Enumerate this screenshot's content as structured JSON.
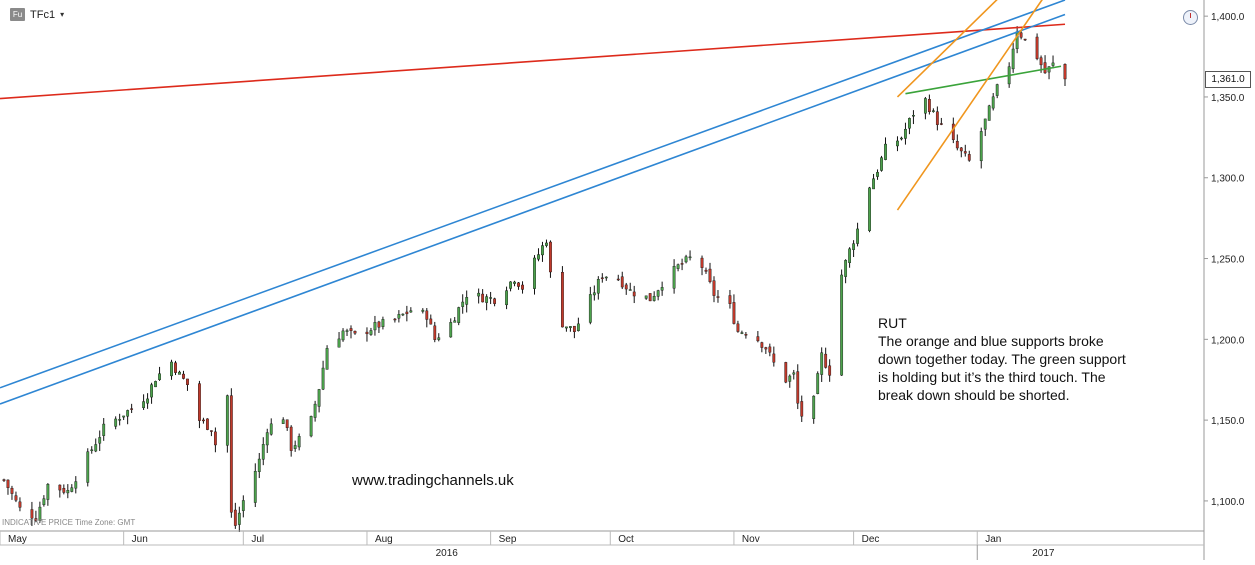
{
  "header": {
    "symbol_badge": "Fu",
    "symbol": "TFc1",
    "dropdown_glyph": "▾"
  },
  "footer_note": "INDICATIVE PRICE   Time Zone: GMT",
  "annotation": {
    "title": "RUT",
    "body": "The orange and blue supports broke down together today. The green support is holding but it’s the third touch. The break down should be shorted."
  },
  "watermark": "www.tradingchannels.uk",
  "price_tag": "1,361.0",
  "chart_data": {
    "type": "candlestick",
    "title": "",
    "xlabel": "",
    "ylabel": "",
    "ylim": [
      1085,
      1405
    ],
    "xlim": [
      "2016-05-01",
      "2017-01-23"
    ],
    "y_ticks": [
      {
        "value": 1100,
        "label": "1,100.0"
      },
      {
        "value": 1150,
        "label": "1,150.0"
      },
      {
        "value": 1200,
        "label": "1,200.0"
      },
      {
        "value": 1250,
        "label": "1,250.0"
      },
      {
        "value": 1300,
        "label": "1,300.0"
      },
      {
        "value": 1350,
        "label": "1,350.0"
      },
      {
        "value": 1400,
        "label": "1,400.0"
      }
    ],
    "month_labels": [
      {
        "label": "May",
        "date": "2016-05-01"
      },
      {
        "label": "Jun",
        "date": "2016-06-01"
      },
      {
        "label": "Jul",
        "date": "2016-07-01"
      },
      {
        "label": "Aug",
        "date": "2016-08-01"
      },
      {
        "label": "Sep",
        "date": "2016-09-01"
      },
      {
        "label": "Oct",
        "date": "2016-10-01"
      },
      {
        "label": "Nov",
        "date": "2016-11-01"
      },
      {
        "label": "Dec",
        "date": "2016-12-01"
      },
      {
        "label": "Jan",
        "date": "2017-01-01"
      }
    ],
    "year_labels": [
      {
        "label": "2016",
        "date": "2016-09-01"
      },
      {
        "label": "2017",
        "date": "2017-01-01"
      }
    ],
    "last_price": 1361.0,
    "price_path": [
      [
        "2016-05-02",
        1113
      ],
      [
        "2016-05-06",
        1095
      ],
      [
        "2016-05-10",
        1090
      ],
      [
        "2016-05-13",
        1110
      ],
      [
        "2016-05-18",
        1106
      ],
      [
        "2016-05-24",
        1132
      ],
      [
        "2016-05-27",
        1145
      ],
      [
        "2016-06-01",
        1154
      ],
      [
        "2016-06-03",
        1157
      ],
      [
        "2016-06-07",
        1166
      ],
      [
        "2016-06-09",
        1176
      ],
      [
        "2016-06-13",
        1186
      ],
      [
        "2016-06-15",
        1178
      ],
      [
        "2016-06-17",
        1172
      ],
      [
        "2016-06-20",
        1150
      ],
      [
        "2016-06-23",
        1145
      ],
      [
        "2016-06-24",
        1135
      ],
      [
        "2016-06-27",
        1165
      ],
      [
        "2016-06-28",
        1092
      ],
      [
        "2016-06-29",
        1085
      ],
      [
        "2016-07-01",
        1100
      ],
      [
        "2016-07-05",
        1125
      ],
      [
        "2016-07-07",
        1145
      ],
      [
        "2016-07-11",
        1152
      ],
      [
        "2016-07-13",
        1133
      ],
      [
        "2016-07-15",
        1138
      ],
      [
        "2016-07-18",
        1150
      ],
      [
        "2016-07-20",
        1170
      ],
      [
        "2016-07-22",
        1195
      ],
      [
        "2016-07-26",
        1205
      ],
      [
        "2016-07-29",
        1202
      ],
      [
        "2016-08-03",
        1208
      ],
      [
        "2016-08-08",
        1212
      ],
      [
        "2016-08-12",
        1218
      ],
      [
        "2016-08-16",
        1215
      ],
      [
        "2016-08-18",
        1200
      ],
      [
        "2016-08-22",
        1210
      ],
      [
        "2016-08-26",
        1228
      ],
      [
        "2016-08-30",
        1226
      ],
      [
        "2016-09-02",
        1225
      ],
      [
        "2016-09-07",
        1238
      ],
      [
        "2016-09-09",
        1232
      ],
      [
        "2016-09-12",
        1248
      ],
      [
        "2016-09-15",
        1262
      ],
      [
        "2016-09-16",
        1240
      ],
      [
        "2016-09-19",
        1210
      ],
      [
        "2016-09-22",
        1205
      ],
      [
        "2016-09-26",
        1225
      ],
      [
        "2016-09-29",
        1240
      ],
      [
        "2016-10-03",
        1238
      ],
      [
        "2016-10-06",
        1230
      ],
      [
        "2016-10-11",
        1225
      ],
      [
        "2016-10-14",
        1235
      ],
      [
        "2016-10-18",
        1245
      ],
      [
        "2016-10-21",
        1250
      ],
      [
        "2016-10-24",
        1245
      ],
      [
        "2016-10-27",
        1228
      ],
      [
        "2016-10-31",
        1220
      ],
      [
        "2016-11-02",
        1205
      ],
      [
        "2016-11-04",
        1205
      ],
      [
        "2016-11-07",
        1200
      ],
      [
        "2016-11-09",
        1195
      ],
      [
        "2016-11-11",
        1185
      ],
      [
        "2016-11-14",
        1175
      ],
      [
        "2016-11-16",
        1178
      ],
      [
        "2016-11-17",
        1160
      ],
      [
        "2016-11-18",
        1153
      ],
      [
        "2016-11-21",
        1162
      ],
      [
        "2016-11-23",
        1190
      ],
      [
        "2016-11-25",
        1180
      ],
      [
        "2016-11-28",
        1240
      ],
      [
        "2016-11-30",
        1255
      ],
      [
        "2016-12-02",
        1268
      ],
      [
        "2016-12-05",
        1295
      ],
      [
        "2016-12-07",
        1305
      ],
      [
        "2016-12-09",
        1318
      ],
      [
        "2016-12-13",
        1325
      ],
      [
        "2016-12-16",
        1340
      ],
      [
        "2016-12-19",
        1348
      ],
      [
        "2016-12-22",
        1335
      ],
      [
        "2016-12-27",
        1318
      ],
      [
        "2016-12-30",
        1310
      ],
      [
        "2017-01-03",
        1335
      ],
      [
        "2017-01-06",
        1355
      ],
      [
        "2017-01-09",
        1370
      ],
      [
        "2017-01-11",
        1392
      ],
      [
        "2017-01-13",
        1385
      ],
      [
        "2017-01-16",
        1375
      ],
      [
        "2017-01-18",
        1365
      ],
      [
        "2017-01-20",
        1370
      ],
      [
        "2017-01-23",
        1361
      ]
    ],
    "trend_lines": [
      {
        "color": "#dd2a1b",
        "from": [
          "2016-05-01",
          1349
        ],
        "to": [
          "2017-01-23",
          1395
        ]
      },
      {
        "color": "#2e86d3",
        "from": [
          "2016-05-01",
          1170
        ],
        "to": [
          "2017-01-23",
          1410
        ]
      },
      {
        "color": "#2e86d3",
        "from": [
          "2016-05-01",
          1160
        ],
        "to": [
          "2017-01-23",
          1401
        ]
      },
      {
        "color": "#3aa33a",
        "from": [
          "2016-12-14",
          1352
        ],
        "to": [
          "2017-01-22",
          1369
        ]
      },
      {
        "color": "#f0961e",
        "from": [
          "2016-12-12",
          1350
        ],
        "to": [
          "2017-01-10",
          1420
        ]
      },
      {
        "color": "#f0961e",
        "from": [
          "2016-12-12",
          1280
        ],
        "to": [
          "2017-01-20",
          1420
        ]
      }
    ],
    "colors": {
      "up_candle": "#4ca24c",
      "down_candle": "#c0392b",
      "wick": "#111111",
      "axis": "#999999",
      "grid": "none"
    }
  }
}
